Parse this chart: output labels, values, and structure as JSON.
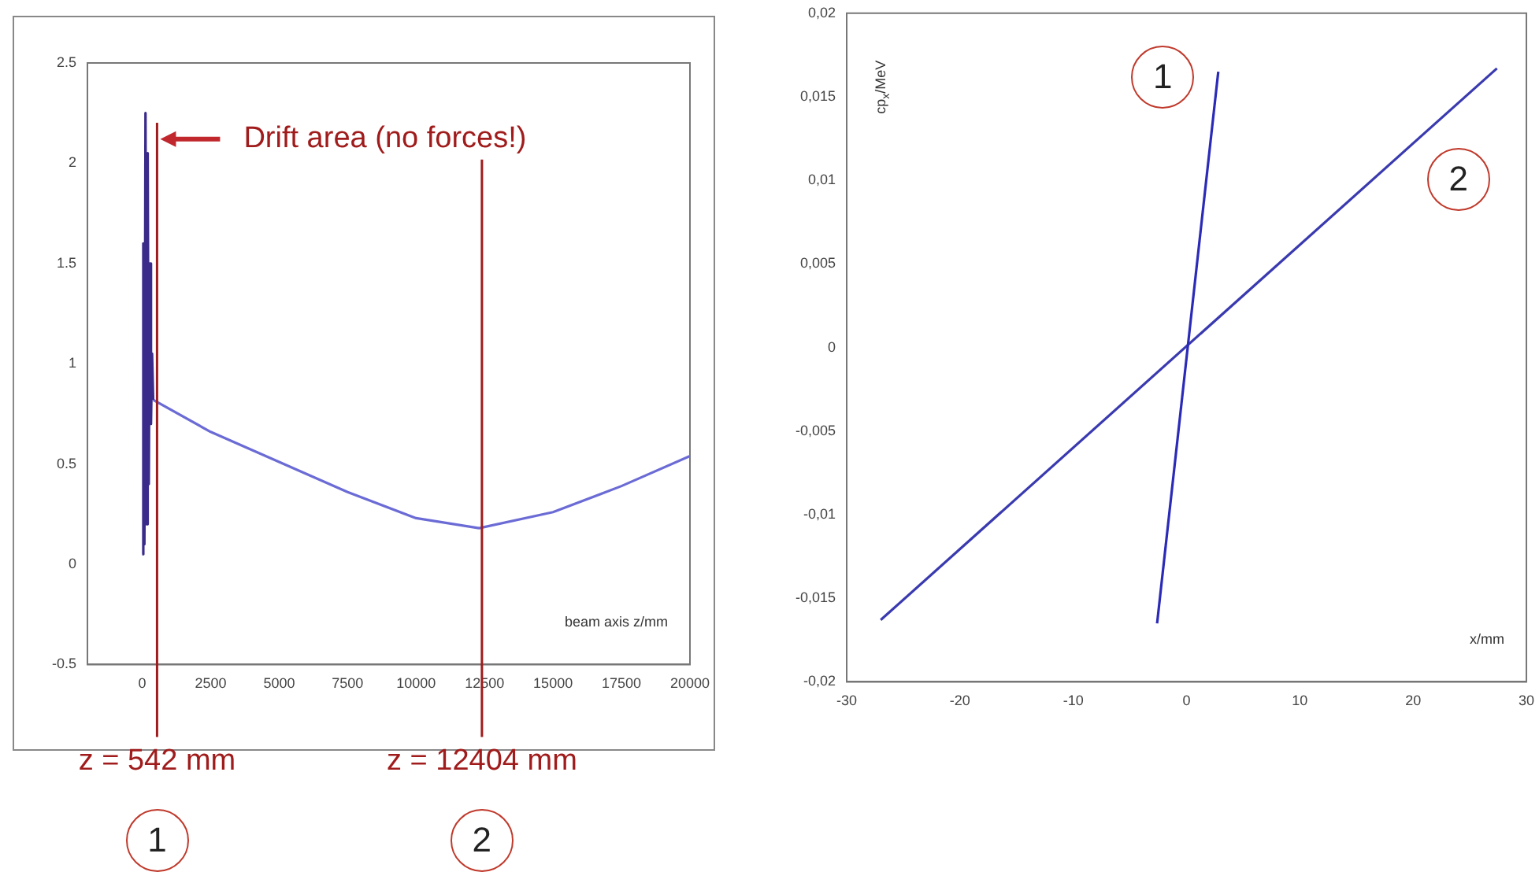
{
  "chart_data": [
    {
      "type": "line",
      "xlabel": "beam axis z/mm",
      "xlim": [
        -2000,
        20000
      ],
      "xticks": [
        0,
        2500,
        5000,
        7500,
        10000,
        12500,
        15000,
        17500,
        20000
      ],
      "ylim": [
        -0.5,
        2.5
      ],
      "yticks": [
        -0.5,
        0,
        0.5,
        1,
        1.5,
        2,
        2.5
      ],
      "grid": false,
      "legend": false,
      "series": [
        {
          "color": "#3a2a8a",
          "x": [
            0,
            40,
            80,
            120,
            160,
            200,
            240,
            280,
            320,
            360,
            400
          ],
          "values": [
            0.05,
            1.6,
            0.1,
            2.25,
            0.2,
            2.05,
            0.4,
            1.5,
            0.7,
            1.05,
            0.82
          ]
        },
        {
          "color": "#6b6bd6",
          "x": [
            400,
            2500,
            5000,
            7500,
            10000,
            12300,
            15000,
            17500,
            20000
          ],
          "values": [
            0.82,
            0.66,
            0.51,
            0.36,
            0.23,
            0.18,
            0.26,
            0.39,
            0.54
          ]
        }
      ],
      "ref_lines": [
        {
          "axis": "x",
          "value": 542,
          "label": "z = 542 mm",
          "color": "#a01c1c"
        },
        {
          "axis": "x",
          "value": 12404,
          "label": "z = 12404 mm",
          "color": "#a01c1c"
        }
      ],
      "annotations": [
        {
          "text": "Drift area (no forces!)",
          "x": 542,
          "y": 2.12
        },
        "1",
        "2"
      ]
    },
    {
      "type": "line",
      "xlabel": "x/mm",
      "ylabel": "cp$_{x}$/MeV",
      "xlim": [
        -30,
        30
      ],
      "xticks": [
        -30,
        -20,
        -10,
        0,
        10,
        20,
        30
      ],
      "ylim": [
        -0.02,
        0.02
      ],
      "yticks": [
        {
          "value": -0.02,
          "label": "-0,02"
        },
        {
          "value": -0.015,
          "label": "-0,015"
        },
        {
          "value": -0.01,
          "label": "-0,01"
        },
        {
          "value": -0.005,
          "label": "-0,005"
        },
        0,
        {
          "value": 0.005,
          "label": "0,005"
        },
        {
          "value": 0.01,
          "label": "0,01"
        },
        {
          "value": 0.015,
          "label": "0,015"
        },
        {
          "value": 0.02,
          "label": "0,02"
        }
      ],
      "grid": false,
      "legend": false,
      "series": [
        {
          "color": "#2b2bb8",
          "x": [
            -2.6,
            2.8
          ],
          "values": [
            -0.0165,
            0.0165
          ]
        },
        {
          "color": "#3a3ab0",
          "x": [
            -27,
            27.4
          ],
          "values": [
            -0.0163,
            0.0167
          ]
        }
      ],
      "annotations": [
        {
          "text": "1",
          "x": -2.1,
          "y": 0.0162
        },
        {
          "text": "2",
          "x": 24,
          "y": 0.0101
        }
      ]
    }
  ]
}
